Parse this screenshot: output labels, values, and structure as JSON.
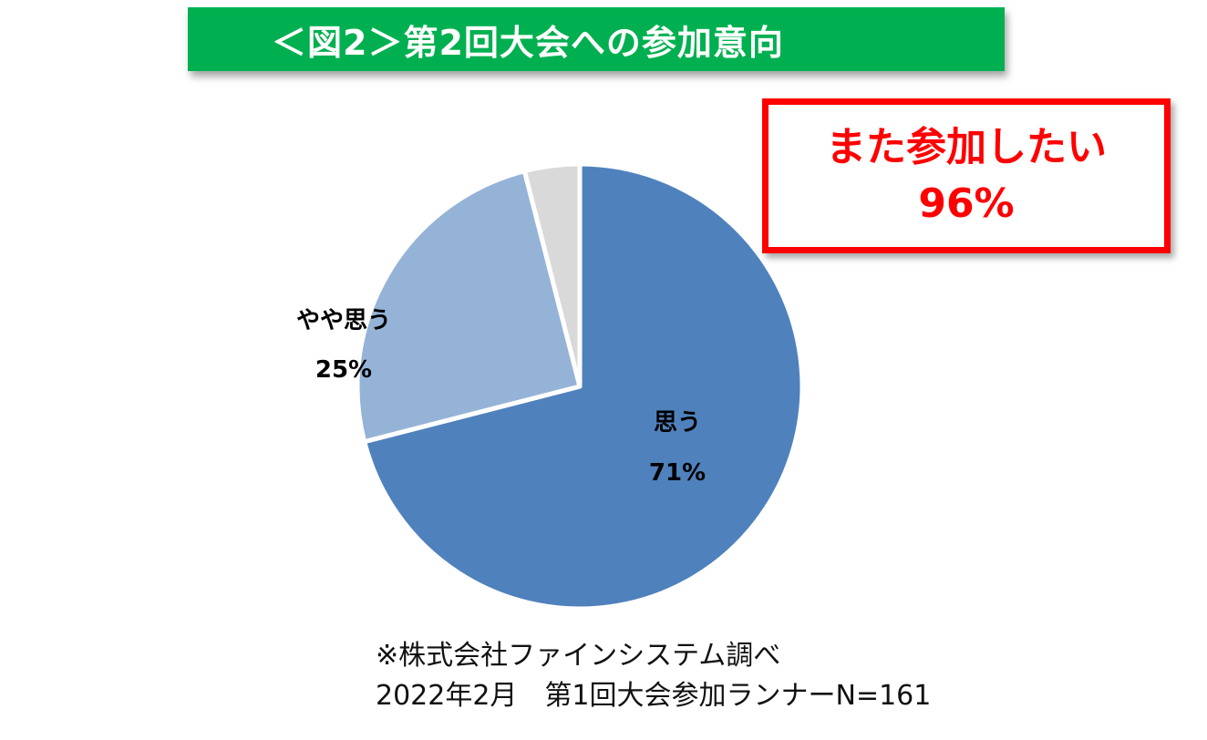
{
  "title": "＜図2＞第2回大会への参加意向",
  "callout": {
    "line1": "また参加したい",
    "line2": "96%"
  },
  "chart_data": {
    "type": "pie",
    "categories": [
      "思う",
      "やや思う",
      ""
    ],
    "values": [
      71,
      25,
      4
    ],
    "data_labels": [
      {
        "name": "思う",
        "value": "71%"
      },
      {
        "name": "やや思う",
        "value": "25%"
      }
    ],
    "colors": [
      "#4f81bd",
      "#95b3d7",
      "#d9d9d9"
    ]
  },
  "note": {
    "line1": "※株式会社ファインシステム調べ",
    "line2": "2022年2月　第1回大会参加ランナーN=161"
  }
}
